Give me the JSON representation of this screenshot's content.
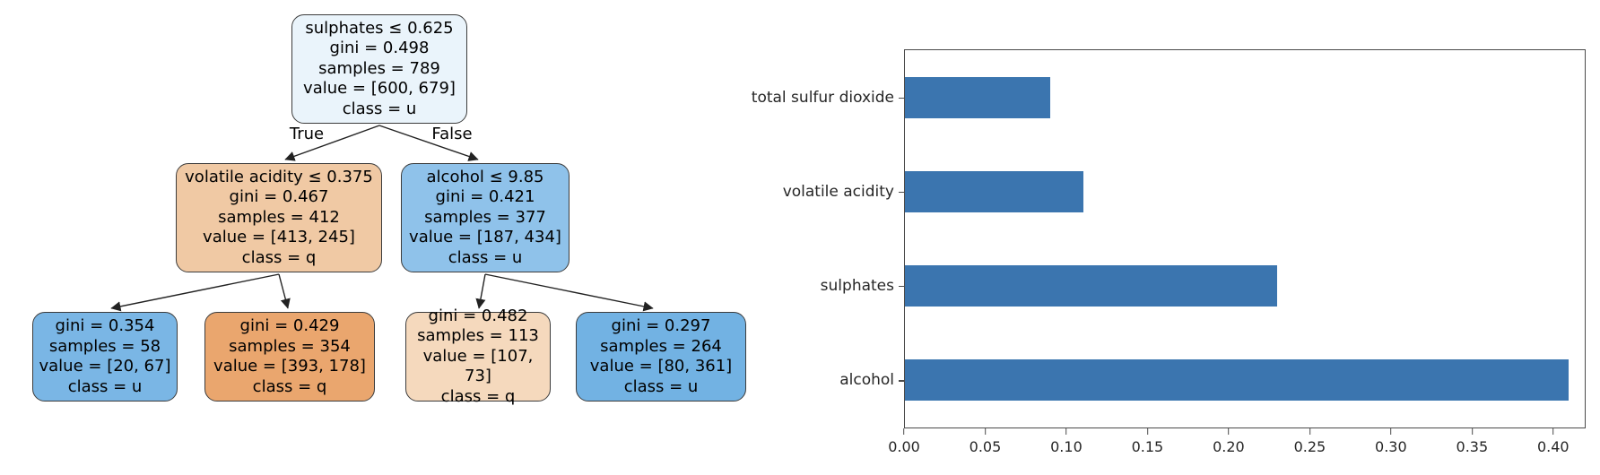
{
  "figure": {
    "background": "#ffffff"
  },
  "tree": {
    "edge_labels": {
      "left": "True",
      "right": "False"
    },
    "edge_color": "#222222",
    "border_color": "#3c3c3c",
    "nodes": [
      {
        "id": "root",
        "fill": "#eaf4fb",
        "lines": [
          "sulphates ≤ 0.625",
          "gini = 0.498",
          "samples = 789",
          "value = [600, 679]",
          "class = u"
        ]
      },
      {
        "id": "left-internal",
        "fill": "#f0c9a4",
        "lines": [
          "volatile acidity ≤ 0.375",
          "gini = 0.467",
          "samples = 412",
          "value = [413, 245]",
          "class = q"
        ]
      },
      {
        "id": "right-internal",
        "fill": "#8fc2ea",
        "lines": [
          "alcohol ≤ 9.85",
          "gini = 0.421",
          "samples = 377",
          "value = [187, 434]",
          "class = u"
        ]
      },
      {
        "id": "leaf-1",
        "fill": "#7ab6e5",
        "lines": [
          "gini = 0.354",
          "samples = 58",
          "value = [20, 67]",
          "class = u"
        ]
      },
      {
        "id": "leaf-2",
        "fill": "#eaa66e",
        "lines": [
          "gini = 0.429",
          "samples = 354",
          "value = [393, 178]",
          "class = q"
        ]
      },
      {
        "id": "leaf-3",
        "fill": "#f5d9bd",
        "lines": [
          "gini = 0.482",
          "samples = 113",
          "value = [107, 73]",
          "class = q"
        ]
      },
      {
        "id": "leaf-4",
        "fill": "#72b2e3",
        "lines": [
          "gini = 0.297",
          "samples = 264",
          "value = [80, 361]",
          "class = u"
        ]
      }
    ]
  },
  "chart_data": {
    "type": "bar",
    "orientation": "horizontal",
    "title": "",
    "xlabel": "",
    "ylabel": "",
    "categories": [
      "total sulfur dioxide",
      "volatile acidity",
      "sulphates",
      "alcohol"
    ],
    "values": [
      0.09,
      0.11,
      0.23,
      0.41
    ],
    "xticks": [
      "0.00",
      "0.05",
      "0.10",
      "0.15",
      "0.20",
      "0.25",
      "0.30",
      "0.35",
      "0.40"
    ],
    "xtick_values": [
      0.0,
      0.05,
      0.1,
      0.15,
      0.2,
      0.25,
      0.3,
      0.35,
      0.4
    ],
    "xlim": [
      0,
      0.42
    ],
    "bar_color": "#3b75af",
    "grid": false,
    "legend": null
  }
}
